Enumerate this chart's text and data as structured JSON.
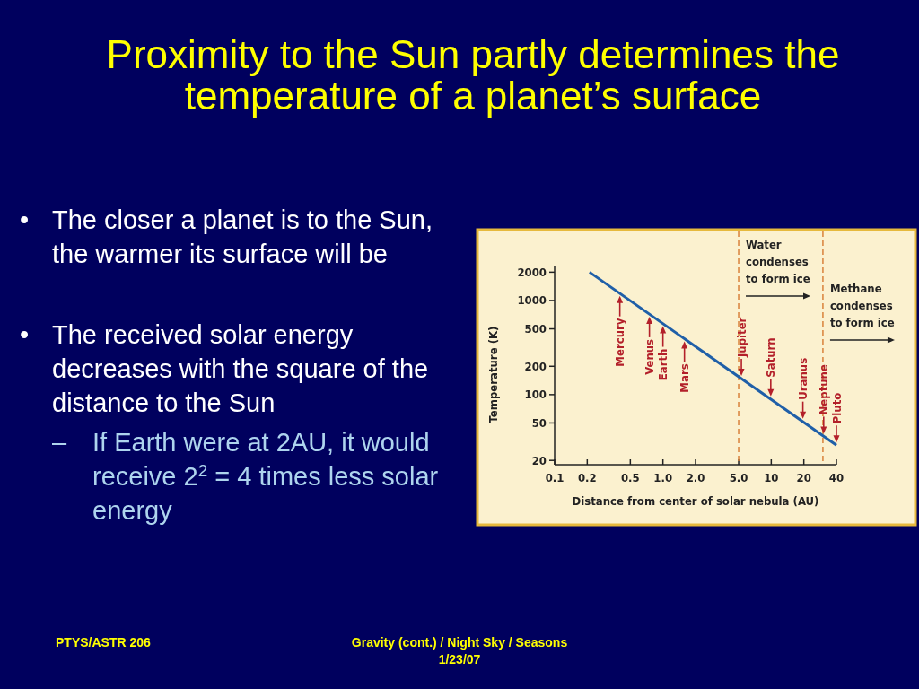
{
  "chart_data": {
    "type": "line",
    "title": "Proximity to the Sun partly determines the temperature of a planet’s surface",
    "xlabel": "Distance from center of solar nebula (AU)",
    "ylabel": "Temperature (K)",
    "log": "xy",
    "xlim": [
      0.1,
      40
    ],
    "ylim": [
      18,
      2300
    ],
    "xticks": [
      0.1,
      0.2,
      0.5,
      {
        "value": 1,
        "label": "1.0"
      },
      {
        "value": 2,
        "label": "2.0"
      },
      {
        "value": 5,
        "label": "5.0"
      },
      10,
      20,
      40
    ],
    "yticks": [
      20,
      50,
      100,
      200,
      500,
      1000,
      2000
    ],
    "grid": false,
    "line_style": "solid",
    "series": [
      {
        "color": "#1f5fa8",
        "x": [
          0.21,
          40
        ],
        "values": [
          2000,
          29
        ]
      }
    ],
    "ref_lines": [
      {
        "axis": "x",
        "value": 5,
        "label": "Water condenses to form ice",
        "color": "#d9823b",
        "line_style": "dashed"
      },
      {
        "axis": "x",
        "value": 30,
        "label": "Methane condenses to form ice",
        "color": "#d9823b",
        "line_style": "dashed"
      }
    ],
    "annotations": [
      "• The closer a planet is to the Sun, the warmer its surface will be",
      "• The received solar energy decreases with the square of the distance to the Sun",
      "– If Earth were at 2AU, it would receive 2$^{2}$ = 4 times less solar energy",
      "PTYS/ASTR 206",
      "Gravity (cont.) / Night Sky / Seasons",
      "1/23/07",
      {
        "text": "Mercury",
        "x": 0.4,
        "y": 1200
      },
      {
        "text": "Venus",
        "x": 0.75,
        "y": 720
      },
      {
        "text": "Earth",
        "x": 1,
        "y": 570
      },
      {
        "text": "Mars",
        "x": 1.58,
        "y": 394
      },
      {
        "text": "Jupiter",
        "x": 5.3,
        "y": 148
      },
      {
        "text": "Saturn",
        "x": 9.9,
        "y": 90
      },
      {
        "text": "Uranus",
        "x": 19.6,
        "y": 52
      },
      {
        "text": "Neptune",
        "x": 30.5,
        "y": 36
      },
      {
        "text": "Pluto",
        "x": 40,
        "y": 29
      }
    ]
  }
}
